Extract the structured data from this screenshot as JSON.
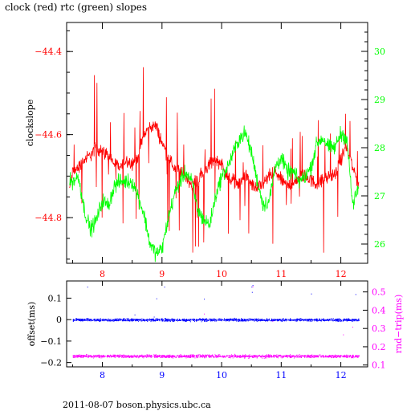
{
  "title": "clock (red) rtc (green) slopes",
  "footer": "2011-08-07 boson.physics.ubc.ca",
  "colors": {
    "red": "#ff0000",
    "green": "#00ff00",
    "blue": "#0000ff",
    "magenta": "#ff00ff",
    "black": "#000000"
  },
  "chart_data": [
    {
      "type": "line",
      "ylabel_left": "clockslope",
      "x": {
        "range": [
          7.4,
          12.45
        ],
        "ticks": [
          8,
          9,
          10,
          11,
          12
        ],
        "tick_labels": [
          "8",
          "9",
          "10",
          "11",
          "12"
        ]
      },
      "y_left": {
        "range": [
          -44.91,
          -44.33
        ],
        "ticks": [
          -44.8,
          -44.6,
          -44.4
        ],
        "tick_labels": [
          "−44.8",
          "−44.6",
          "−44.4"
        ]
      },
      "y_right": {
        "range": [
          25.6,
          30.6
        ],
        "ticks": [
          26,
          27,
          28,
          29,
          30
        ],
        "tick_labels": [
          "26",
          "27",
          "28",
          "29",
          "30"
        ]
      },
      "series": [
        {
          "color": "red",
          "axis": "left",
          "x": [
            7.45,
            7.5,
            7.6,
            7.7,
            7.8,
            7.9,
            8.0,
            8.1,
            8.2,
            8.3,
            8.4,
            8.5,
            8.6,
            8.7,
            8.8,
            8.9,
            9.0,
            9.1,
            9.2,
            9.3,
            9.4,
            9.5,
            9.6,
            9.7,
            9.8,
            9.9,
            10.0,
            10.1,
            10.2,
            10.3,
            10.4,
            10.5,
            10.6,
            10.7,
            10.8,
            10.9,
            11.0,
            11.1,
            11.2,
            11.3,
            11.4,
            11.5,
            11.6,
            11.7,
            11.8,
            11.9,
            12.0,
            12.1,
            12.2,
            12.3
          ],
          "y": [
            -44.73,
            -44.69,
            -44.68,
            -44.66,
            -44.65,
            -44.63,
            -44.64,
            -44.65,
            -44.67,
            -44.68,
            -44.66,
            -44.67,
            -44.65,
            -44.6,
            -44.58,
            -44.58,
            -44.62,
            -44.65,
            -44.68,
            -44.69,
            -44.7,
            -44.72,
            -44.71,
            -44.69,
            -44.67,
            -44.66,
            -44.67,
            -44.7,
            -44.71,
            -44.72,
            -44.7,
            -44.72,
            -44.73,
            -44.72,
            -44.7,
            -44.69,
            -44.71,
            -44.72,
            -44.72,
            -44.7,
            -44.7,
            -44.71,
            -44.72,
            -44.71,
            -44.7,
            -44.7,
            -44.66,
            -44.63,
            -44.68,
            -44.72
          ]
        },
        {
          "color": "green",
          "axis": "right",
          "x": [
            7.45,
            7.5,
            7.6,
            7.7,
            7.8,
            7.9,
            8.0,
            8.1,
            8.2,
            8.3,
            8.4,
            8.5,
            8.6,
            8.7,
            8.8,
            8.9,
            9.0,
            9.1,
            9.2,
            9.3,
            9.4,
            9.5,
            9.6,
            9.7,
            9.8,
            9.9,
            10.0,
            10.1,
            10.2,
            10.3,
            10.4,
            10.5,
            10.6,
            10.7,
            10.8,
            10.9,
            11.0,
            11.1,
            11.2,
            11.3,
            11.4,
            11.5,
            11.6,
            11.7,
            11.8,
            11.9,
            12.0,
            12.1,
            12.2,
            12.3
          ],
          "y": [
            27.3,
            27.3,
            27.4,
            26.7,
            26.3,
            26.5,
            26.9,
            26.8,
            27.2,
            27.3,
            27.3,
            27.3,
            27.0,
            26.6,
            26.0,
            25.8,
            25.9,
            26.5,
            27.0,
            27.3,
            27.5,
            27.3,
            26.7,
            26.5,
            26.4,
            27.0,
            27.4,
            27.6,
            27.9,
            28.2,
            28.3,
            27.9,
            27.3,
            26.8,
            26.9,
            27.6,
            27.8,
            27.5,
            27.5,
            27.3,
            27.4,
            27.6,
            28.1,
            28.2,
            28.0,
            28.0,
            28.3,
            28.2,
            26.8,
            27.2
          ]
        }
      ]
    },
    {
      "type": "scatter",
      "ylabel_left": "offset(ms)",
      "ylabel_right": "rnd−trip(ms)",
      "x": {
        "range": [
          7.4,
          12.45
        ],
        "ticks": [
          8,
          9,
          10,
          11,
          12
        ],
        "tick_labels": [
          "8",
          "9",
          "10",
          "11",
          "12"
        ]
      },
      "y_left": {
        "range": [
          -0.22,
          0.18
        ],
        "ticks": [
          -0.2,
          -0.1,
          0,
          0.1
        ],
        "tick_labels": [
          "−0.2",
          "−0.1",
          "0",
          "0.1"
        ]
      },
      "y_right": {
        "range": [
          0.09,
          0.56
        ],
        "ticks": [
          0.1,
          0.2,
          0.3,
          0.4,
          0.5
        ],
        "tick_labels": [
          "0.1",
          "0.2",
          "0.3",
          "0.4",
          "0.5"
        ]
      },
      "series": [
        {
          "color": "blue",
          "axis": "left",
          "x_range": [
            7.5,
            12.3
          ],
          "y_center": 0.0
        },
        {
          "color": "magenta",
          "axis": "right",
          "x_range": [
            7.5,
            12.3
          ],
          "y_center": 0.15
        }
      ]
    }
  ]
}
